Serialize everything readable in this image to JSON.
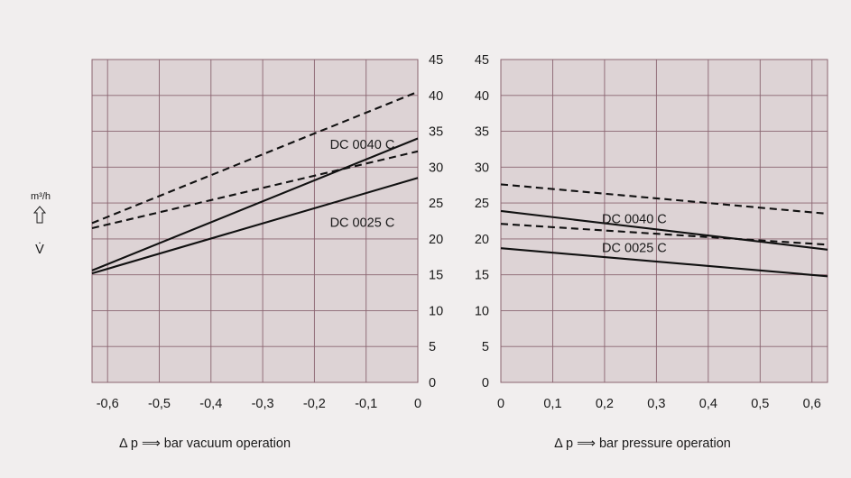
{
  "colors": {
    "background": "#f1eeee",
    "plot_fill": "#ddd3d5",
    "grid": "#8a6470",
    "line": "#111111"
  },
  "y_unit": "m³/h",
  "y_symbol": "V̇",
  "chart_data": [
    {
      "type": "line",
      "xlabel": "Δ p ⟹ bar vacuum operation",
      "x_ticks": [
        "-0,6",
        "-0,5",
        "-0,4",
        "-0,3",
        "-0,2",
        "-0,1",
        "0"
      ],
      "y_ticks": [
        "0",
        "5",
        "10",
        "15",
        "20",
        "25",
        "30",
        "35",
        "40",
        "45"
      ],
      "xlim": [
        -0.63,
        0
      ],
      "ylim": [
        0,
        45
      ],
      "grid": true,
      "annotations": [
        {
          "text": "DC 0040 C",
          "x": -0.17,
          "y": 33.2
        },
        {
          "text": "DC 0025 C",
          "x": -0.17,
          "y": 22.3
        }
      ],
      "series": [
        {
          "style": "dashed",
          "x": [
            -0.63,
            0
          ],
          "y": [
            22.2,
            40.5
          ]
        },
        {
          "style": "dashed",
          "x": [
            -0.63,
            0
          ],
          "y": [
            21.5,
            32.2
          ]
        },
        {
          "style": "solid",
          "x": [
            -0.63,
            0
          ],
          "y": [
            15.6,
            34.0
          ]
        },
        {
          "style": "solid",
          "x": [
            -0.63,
            0
          ],
          "y": [
            15.2,
            28.5
          ]
        }
      ]
    },
    {
      "type": "line",
      "xlabel": "Δ p ⟹ bar pressure operation",
      "x_ticks": [
        "0",
        "0,1",
        "0,2",
        "0,3",
        "0,4",
        "0,5",
        "0,6"
      ],
      "y_ticks": [
        "0",
        "5",
        "10",
        "15",
        "20",
        "25",
        "30",
        "35",
        "40",
        "45"
      ],
      "xlim": [
        0,
        0.63
      ],
      "ylim": [
        0,
        45
      ],
      "grid": true,
      "annotations": [
        {
          "text": "DC 0040 C",
          "x": 0.195,
          "y": 22.8
        },
        {
          "text": "DC 0025 C",
          "x": 0.195,
          "y": 18.8
        }
      ],
      "series": [
        {
          "style": "dashed",
          "x": [
            0,
            0.63
          ],
          "y": [
            27.6,
            23.5
          ]
        },
        {
          "style": "dashed",
          "x": [
            0,
            0.63
          ],
          "y": [
            22.1,
            19.2
          ]
        },
        {
          "style": "solid",
          "x": [
            0,
            0.63
          ],
          "y": [
            23.9,
            18.5
          ]
        },
        {
          "style": "solid",
          "x": [
            0,
            0.63
          ],
          "y": [
            18.7,
            14.8
          ]
        }
      ]
    }
  ]
}
